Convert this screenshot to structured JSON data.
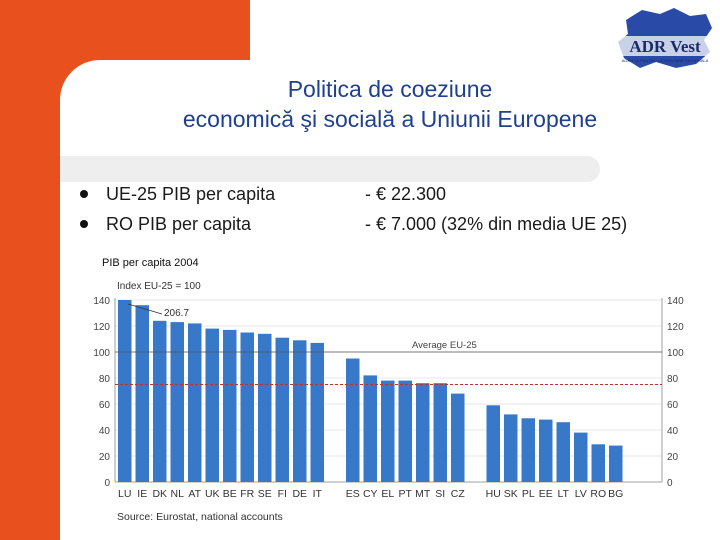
{
  "slide": {
    "title_line1": "Politica de coeziune",
    "title_line2": "economică şi socială a Uniunii Europene",
    "bullets": [
      {
        "label": "UE-25 PIB per capita",
        "value": "- € 22.300"
      },
      {
        "label": "RO PIB per capita",
        "value": "- € 7.000  (32% din media UE 25)"
      }
    ],
    "chart_caption": "PIB per capita 2004"
  },
  "logo": {
    "text": "ADR Vest",
    "subtext": "AGENTIA PENTRU DEZVOLTARE REGIONALA",
    "map_color": "#2a4aa8"
  },
  "colors": {
    "orange": "#e8501e",
    "bar_blue": "#3878c8",
    "average_line": "#c03030",
    "title_blue": "#1f3f8f"
  },
  "chart_data": {
    "type": "bar",
    "title": "Index EU-25 = 100",
    "annotation": "206.7",
    "average_label": "Average EU-25",
    "average_value": 100,
    "dashed_line_value": 75,
    "source": "Source: Eurostat, national accounts",
    "ylim": [
      0,
      140
    ],
    "yticks": [
      0,
      20,
      40,
      60,
      80,
      100,
      120,
      140
    ],
    "groups": [
      {
        "categories": [
          "LU",
          "IE",
          "DK",
          "NL",
          "AT",
          "UK",
          "BE",
          "FR",
          "SE",
          "FI",
          "DE",
          "IT"
        ],
        "values": [
          140,
          136,
          124,
          123,
          122,
          118,
          117,
          115,
          114,
          111,
          109,
          107
        ]
      },
      {
        "categories": [
          "ES",
          "CY",
          "EL",
          "PT",
          "MT",
          "SI",
          "CZ"
        ],
        "values": [
          95,
          82,
          78,
          78,
          76,
          76,
          68
        ]
      },
      {
        "categories": [
          "HU",
          "SK",
          "PL",
          "EE",
          "LT",
          "LV",
          "RO",
          "BG"
        ],
        "values": [
          59,
          52,
          49,
          48,
          46,
          38,
          29,
          28
        ]
      }
    ]
  }
}
